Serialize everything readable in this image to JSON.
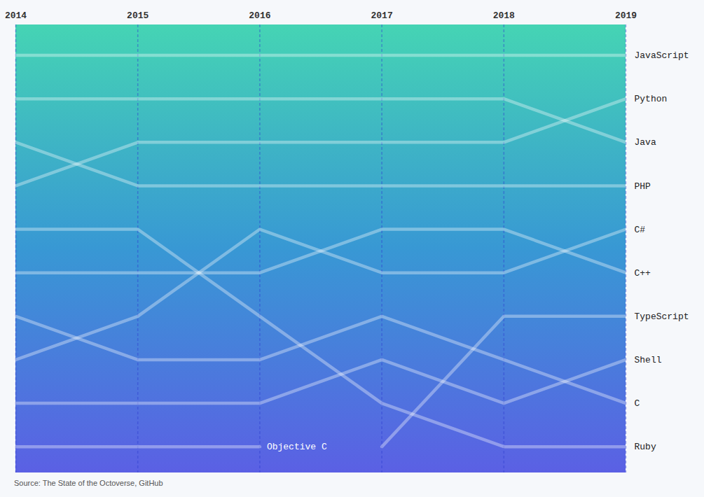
{
  "chart_data": {
    "type": "line",
    "caption": "Source: The State of the Octoverse, GitHub",
    "x": [
      2014,
      2015,
      2016,
      2017,
      2018,
      2019
    ],
    "xlim": [
      2014,
      2019
    ],
    "xticks": [
      2014,
      2015,
      2016,
      2017,
      2018,
      2019
    ],
    "ylim": [
      10.6,
      0.3
    ],
    "yticks": [],
    "tick_labels": "x",
    "grid": true,
    "color": "#ffffff",
    "series": [
      {
        "name": "JavaScript",
        "values": [
          1,
          1,
          1,
          1,
          1,
          1
        ]
      },
      {
        "name": "Python",
        "values": [
          4,
          3,
          3,
          3,
          3,
          2
        ]
      },
      {
        "name": "Java",
        "values": [
          2,
          2,
          2,
          2,
          2,
          3
        ]
      },
      {
        "name": "PHP",
        "values": [
          3,
          4,
          4,
          4,
          4,
          4
        ]
      },
      {
        "name": "C#",
        "values": [
          8,
          7,
          5,
          6,
          6,
          5
        ]
      },
      {
        "name": "C++",
        "values": [
          6,
          6,
          6,
          5,
          5,
          6
        ]
      },
      {
        "name": "TypeScript",
        "values": [
          null,
          null,
          null,
          10,
          7,
          7
        ]
      },
      {
        "name": "Shell",
        "values": [
          9,
          9,
          9,
          8,
          9,
          8
        ]
      },
      {
        "name": "C",
        "values": [
          7,
          8,
          8,
          7,
          8,
          9
        ]
      },
      {
        "name": "Ruby",
        "values": [
          5,
          5,
          7,
          9,
          10,
          10
        ]
      },
      {
        "name": "Objective C",
        "values": [
          10,
          10,
          10,
          null,
          null,
          null
        ]
      }
    ]
  }
}
